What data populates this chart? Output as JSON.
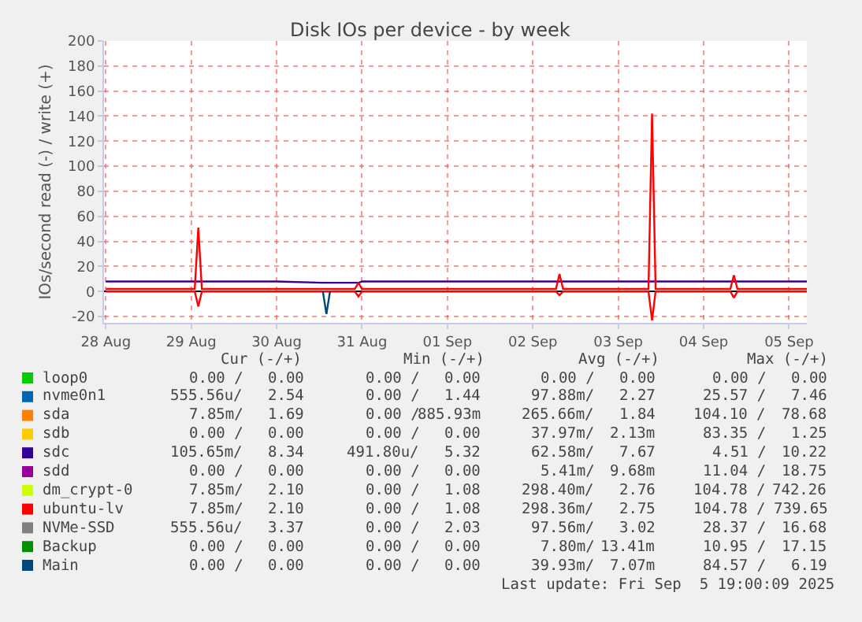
{
  "chart_data": {
    "type": "line",
    "title": "Disk IOs per device - by week",
    "ylabel": "IOs/second read (-) / write (+)",
    "x": [
      "2025-08-28T00:00",
      "2025-08-29T00:00",
      "2025-08-29T01:00",
      "2025-08-29T02:00",
      "2025-08-29T03:00",
      "2025-08-30T00:00",
      "2025-08-30T13:00",
      "2025-08-30T14:00",
      "2025-08-30T15:00",
      "2025-08-30T22:00",
      "2025-08-30T23:00",
      "2025-08-31T00:00",
      "2025-09-01T00:00",
      "2025-09-02T06:30",
      "2025-09-02T07:30",
      "2025-09-02T08:30",
      "2025-09-03T08:30",
      "2025-09-03T09:30",
      "2025-09-03T10:30",
      "2025-09-04T07:30",
      "2025-09-04T08:30",
      "2025-09-04T09:30",
      "2025-09-05T05:00"
    ],
    "series": [
      {
        "name": "loop0",
        "color": "#00cc00",
        "values": [
          null,
          null,
          null,
          null,
          null,
          null,
          null,
          null,
          null,
          null,
          null,
          null,
          null,
          null,
          null,
          null,
          null,
          null,
          null,
          null,
          null,
          null,
          null
        ]
      },
      {
        "name": "nvme0n1",
        "color": "#0066b3",
        "values": [
          null,
          null,
          null,
          null,
          null,
          null,
          null,
          null,
          null,
          null,
          null,
          null,
          null,
          null,
          null,
          null,
          null,
          null,
          null,
          null,
          null,
          null,
          null
        ]
      },
      {
        "name": "sda",
        "color": "#ff8000",
        "values": [
          null,
          null,
          null,
          null,
          null,
          null,
          null,
          null,
          null,
          null,
          null,
          null,
          null,
          null,
          null,
          null,
          null,
          null,
          null,
          null,
          null,
          null,
          null
        ]
      },
      {
        "name": "sdb",
        "color": "#ffcc00",
        "values": [
          null,
          null,
          null,
          null,
          null,
          null,
          null,
          null,
          null,
          null,
          null,
          null,
          null,
          null,
          null,
          null,
          null,
          null,
          null,
          null,
          null,
          null,
          null
        ]
      },
      {
        "name": "sdc",
        "color": "#330099",
        "values": [
          8,
          8,
          8,
          8,
          8,
          8,
          7,
          7,
          7,
          7,
          7,
          8,
          8,
          8,
          8,
          8,
          8,
          8,
          8,
          8,
          8,
          8,
          8
        ]
      },
      {
        "name": "sdd",
        "color": "#990099",
        "values": [
          null,
          null,
          null,
          null,
          null,
          null,
          null,
          null,
          null,
          null,
          null,
          null,
          null,
          null,
          null,
          null,
          null,
          null,
          null,
          null,
          null,
          null,
          null
        ]
      },
      {
        "name": "dm_crypt-0",
        "color": "#ccff00",
        "values": [
          null,
          null,
          null,
          null,
          null,
          null,
          null,
          null,
          null,
          null,
          null,
          null,
          null,
          null,
          null,
          null,
          null,
          null,
          null,
          null,
          null,
          null,
          null
        ]
      },
      {
        "name": "ubuntu-lv",
        "color": "#ff0000",
        "values": [
          2,
          2,
          2,
          51,
          2,
          2,
          2,
          2,
          2,
          2,
          7,
          2,
          2,
          2,
          14,
          2,
          2,
          142,
          2,
          2,
          13,
          2,
          2
        ]
      },
      {
        "color": "#ff0000",
        "values": [
          0,
          0,
          0,
          -12,
          0,
          0,
          0,
          0,
          0,
          0,
          -4,
          0,
          0,
          0,
          -3,
          0,
          0,
          -23,
          0,
          0,
          -5,
          0,
          0
        ]
      },
      {
        "name": "NVMe-SSD",
        "color": "#808080",
        "values": [
          null,
          null,
          null,
          null,
          null,
          null,
          null,
          null,
          null,
          null,
          null,
          null,
          null,
          null,
          null,
          null,
          null,
          null,
          null,
          null,
          null,
          null,
          null
        ]
      },
      {
        "name": "Backup",
        "color": "#008f00",
        "values": [
          null,
          null,
          null,
          null,
          null,
          null,
          null,
          null,
          null,
          null,
          null,
          null,
          null,
          null,
          null,
          null,
          null,
          null,
          null,
          null,
          null,
          null,
          null
        ]
      },
      {
        "name": "Main",
        "color": "#00487d",
        "values": [
          null,
          null,
          null,
          null,
          null,
          null,
          0,
          -18,
          0,
          null,
          null,
          null,
          null,
          null,
          null,
          null,
          null,
          null,
          null,
          null,
          null,
          null,
          null
        ]
      }
    ],
    "xlim": [
      "2025-08-27T23:30",
      "2025-09-05T05:00"
    ],
    "xticks": [
      {
        "value": "2025-08-28",
        "label": "28 Aug"
      },
      {
        "value": "2025-08-29",
        "label": "29 Aug"
      },
      {
        "value": "2025-08-30",
        "label": "30 Aug"
      },
      {
        "value": "2025-08-31",
        "label": "31 Aug"
      },
      {
        "value": "2025-09-01",
        "label": "01 Sep"
      },
      {
        "value": "2025-09-02",
        "label": "02 Sep"
      },
      {
        "value": "2025-09-03",
        "label": "03 Sep"
      },
      {
        "value": "2025-09-04",
        "label": "04 Sep"
      },
      {
        "value": "2025-09-05",
        "label": "05 Sep"
      }
    ],
    "ylim": [
      -25,
      200
    ],
    "yticks": [
      -20,
      0,
      20,
      40,
      60,
      80,
      100,
      120,
      140,
      160,
      180,
      200
    ],
    "grid": true,
    "legend": "bottom",
    "marker": "none",
    "line_style": "solid",
    "annotations": [
      "Cur (-/+)",
      "Min (-/+)",
      "Avg (-/+)",
      "Max (-/+)",
      "0.00 /",
      "0.00",
      "0.00 /",
      "0.00",
      "0.00 /",
      "0.00",
      "0.00 /",
      "0.00",
      "555.56u/",
      "2.54",
      "0.00 /",
      "1.44",
      "97.88m/",
      "2.27",
      "25.57 /",
      "7.46",
      "7.85m/",
      "1.69",
      "0.00 /",
      "885.93m",
      "265.66m/",
      "1.84",
      "104.10 /",
      "78.68",
      "0.00 /",
      "0.00",
      "0.00 /",
      "0.00",
      "37.97m/",
      "2.13m",
      "83.35 /",
      "1.25",
      "105.65m/",
      "8.34",
      "491.80u/",
      "5.32",
      "62.58m/",
      "7.67",
      "4.51 /",
      "10.22",
      "0.00 /",
      "0.00",
      "0.00 /",
      "0.00",
      "5.41m/",
      "9.68m",
      "11.04 /",
      "18.75",
      "7.85m/",
      "2.10",
      "0.00 /",
      "1.08",
      "298.40m/",
      "2.76",
      "104.78 /",
      "742.26",
      "7.85m/",
      "2.10",
      "0.00 /",
      "1.08",
      "298.36m/",
      "2.75",
      "104.78 /",
      "739.65",
      "555.56u/",
      "3.37",
      "0.00 /",
      "2.03",
      "97.56m/",
      "3.02",
      "28.37 /",
      "16.68",
      "0.00 /",
      "0.00",
      "0.00 /",
      "0.00",
      "7.80m/",
      "13.41m",
      "10.95 /",
      "17.15",
      "0.00 /",
      "0.00",
      "0.00 /",
      "0.00",
      "39.93m/",
      "7.07m",
      "84.57 /",
      "6.19",
      "Last update: Fri Sep  5 19:00:09 2025"
    ]
  }
}
